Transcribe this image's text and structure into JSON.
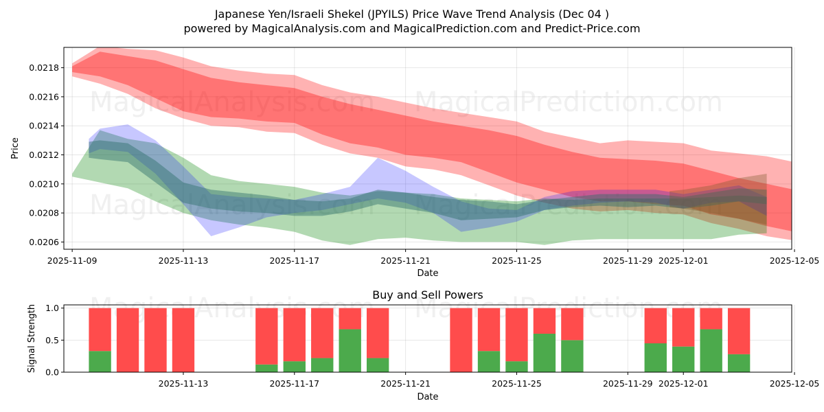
{
  "page_title": "Japanese Yen/Israeli Shekel (JPYILS) Price Wave Trend Analysis (Dec 04 )",
  "page_subtitle": "powered by MagicalAnalysis.com and MagicalPrediction.com and Predict-Price.com",
  "watermarks": [
    "MagicalAnalysis.com",
    "MagicalPrediction.com"
  ],
  "chart_data": [
    {
      "type": "area",
      "title": "Japanese Yen/Israeli Shekel (JPYILS) Price Wave Trend Analysis (Dec 04 )",
      "xlabel": "Date",
      "ylabel": "Price",
      "xlim": [
        -0.3,
        25.9
      ],
      "ylim": [
        0.02055,
        0.02194
      ],
      "x_tick_positions": [
        0,
        4,
        8,
        12,
        16,
        20,
        22,
        26
      ],
      "x_tick_labels": [
        "2025-11-09",
        "2025-11-13",
        "2025-11-17",
        "2025-11-21",
        "2025-11-25",
        "2025-11-29",
        "2025-12-01",
        "2025-12-05"
      ],
      "y_ticks": [
        0.0206,
        0.0208,
        0.021,
        0.0212,
        0.0214,
        0.0216,
        0.0218
      ],
      "y_tick_labels": [
        "0.0206",
        "0.0208",
        "0.0210",
        "0.0212",
        "0.0214",
        "0.0216",
        "0.0218"
      ],
      "grid": true,
      "colors": {
        "red": "#ff0000",
        "blue": "#0000ff",
        "green": "#008000",
        "teal": "#2f6f6a"
      },
      "bands": [
        {
          "name": "red-outer",
          "color": "#ff0000",
          "opacity": 0.3,
          "x": [
            0,
            1,
            2,
            3,
            4,
            5,
            6,
            7,
            8,
            9,
            10,
            11,
            12,
            13,
            14,
            15,
            16,
            17,
            18,
            19,
            20,
            21,
            22,
            23,
            24,
            25,
            26
          ],
          "upper": [
            0.02183,
            0.02195,
            0.02193,
            0.02192,
            0.02187,
            0.02181,
            0.02178,
            0.02176,
            0.02175,
            0.02168,
            0.02163,
            0.0216,
            0.02156,
            0.02152,
            0.02149,
            0.02146,
            0.02143,
            0.02136,
            0.02132,
            0.02128,
            0.0213,
            0.02129,
            0.02128,
            0.02123,
            0.02121,
            0.02119,
            0.02115
          ],
          "lower": [
            0.02174,
            0.02169,
            0.02162,
            0.02152,
            0.02145,
            0.0214,
            0.02139,
            0.02136,
            0.02135,
            0.02127,
            0.02121,
            0.02118,
            0.02112,
            0.0211,
            0.02106,
            0.02099,
            0.02092,
            0.02087,
            0.02083,
            0.02081,
            0.02082,
            0.0208,
            0.02079,
            0.02073,
            0.02069,
            0.02064,
            0.02061
          ]
        },
        {
          "name": "red-inner",
          "color": "#ff0000",
          "opacity": 0.35,
          "x": [
            0,
            1,
            2,
            3,
            4,
            5,
            6,
            7,
            8,
            9,
            10,
            11,
            12,
            13,
            14,
            15,
            16,
            17,
            18,
            19,
            20,
            21,
            22,
            23,
            24,
            25,
            26
          ],
          "upper": [
            0.02181,
            0.02191,
            0.02188,
            0.02185,
            0.02179,
            0.02173,
            0.0217,
            0.02168,
            0.02166,
            0.0216,
            0.02155,
            0.02151,
            0.02147,
            0.02143,
            0.0214,
            0.02137,
            0.02133,
            0.02127,
            0.02122,
            0.02118,
            0.02117,
            0.02116,
            0.02114,
            0.02109,
            0.02104,
            0.021,
            0.02096
          ],
          "lower": [
            0.02177,
            0.02174,
            0.02168,
            0.02159,
            0.0215,
            0.02146,
            0.02145,
            0.02143,
            0.02142,
            0.02134,
            0.02128,
            0.02125,
            0.0212,
            0.02118,
            0.02115,
            0.02108,
            0.02101,
            0.02096,
            0.02091,
            0.02088,
            0.02088,
            0.02086,
            0.02085,
            0.02079,
            0.02076,
            0.02071,
            0.02067
          ]
        },
        {
          "name": "green-wide",
          "color": "#008000",
          "opacity": 0.3,
          "x": [
            0,
            1,
            2,
            3,
            4,
            5,
            6,
            7,
            8,
            9,
            10,
            11,
            12,
            13,
            14,
            15,
            16,
            17,
            18,
            19,
            20,
            21,
            22,
            23,
            24,
            25
          ],
          "upper": [
            0.02107,
            0.02137,
            0.02131,
            0.02128,
            0.02118,
            0.02106,
            0.02102,
            0.021,
            0.02098,
            0.02094,
            0.02092,
            0.02095,
            0.02094,
            0.02093,
            0.0209,
            0.02089,
            0.02088,
            0.0209,
            0.02089,
            0.0209,
            0.0209,
            0.0209,
            0.0209,
            0.02091,
            0.02092,
            0.02091
          ],
          "lower": [
            0.02105,
            0.02101,
            0.02097,
            0.02088,
            0.0208,
            0.02075,
            0.02072,
            0.0207,
            0.02067,
            0.02061,
            0.02058,
            0.02062,
            0.02063,
            0.02061,
            0.0206,
            0.0206,
            0.0206,
            0.02058,
            0.02061,
            0.02062,
            0.02062,
            0.02062,
            0.02062,
            0.02062,
            0.02065,
            0.02066
          ]
        },
        {
          "name": "blue-wave",
          "color": "#0000ff",
          "opacity": 0.22,
          "x": [
            0.6,
            1,
            2,
            3,
            4,
            5,
            6,
            7,
            8,
            9,
            10,
            11,
            12,
            13,
            14,
            15,
            16,
            17,
            18,
            19,
            20,
            21,
            22,
            23,
            24,
            25
          ],
          "upper": [
            0.02131,
            0.02138,
            0.02141,
            0.0213,
            0.02112,
            0.02093,
            0.02091,
            0.0209,
            0.02089,
            0.02093,
            0.02098,
            0.02118,
            0.02109,
            0.02098,
            0.02088,
            0.02083,
            0.02082,
            0.02091,
            0.02095,
            0.02096,
            0.02096,
            0.02096,
            0.02093,
            0.02096,
            0.02099,
            0.02091
          ],
          "lower": [
            0.02121,
            0.02124,
            0.02122,
            0.02107,
            0.02086,
            0.02064,
            0.0207,
            0.02077,
            0.0208,
            0.02082,
            0.02086,
            0.0209,
            0.02087,
            0.0208,
            0.02067,
            0.0207,
            0.02074,
            0.02082,
            0.02085,
            0.02087,
            0.02088,
            0.02087,
            0.02083,
            0.02087,
            0.02088,
            0.02078
          ]
        },
        {
          "name": "teal-core",
          "color": "#2f6f6a",
          "opacity": 0.45,
          "x": [
            0.6,
            1,
            2,
            3,
            4,
            5,
            6,
            7,
            8,
            9,
            10,
            11,
            12,
            13,
            14,
            15,
            16,
            17,
            18,
            19,
            20,
            21,
            22,
            23,
            24,
            25
          ],
          "upper": [
            0.02129,
            0.0213,
            0.02128,
            0.02116,
            0.02101,
            0.02096,
            0.02094,
            0.02092,
            0.02089,
            0.02088,
            0.0209,
            0.02096,
            0.02094,
            0.02091,
            0.02089,
            0.02088,
            0.02086,
            0.02089,
            0.02091,
            0.02093,
            0.02093,
            0.02093,
            0.02091,
            0.02094,
            0.02097,
            0.02096
          ],
          "lower": [
            0.02118,
            0.02117,
            0.02115,
            0.02101,
            0.02087,
            0.02083,
            0.02081,
            0.0208,
            0.02078,
            0.02078,
            0.02081,
            0.02086,
            0.02083,
            0.0208,
            0.02075,
            0.02076,
            0.02077,
            0.02082,
            0.02084,
            0.02085,
            0.02084,
            0.02085,
            0.02083,
            0.02085,
            0.02088,
            0.02086
          ]
        },
        {
          "name": "brown-end",
          "color": "#7a5a2a",
          "opacity": 0.35,
          "x": [
            21.5,
            22,
            23,
            24,
            25
          ],
          "upper": [
            0.02095,
            0.02096,
            0.02099,
            0.02104,
            0.02107
          ],
          "lower": [
            0.02084,
            0.02083,
            0.0208,
            0.02076,
            0.02072
          ]
        }
      ]
    },
    {
      "type": "bar",
      "title": "Buy and Sell Powers",
      "xlabel": "Date",
      "ylabel": "Signal Strength",
      "xlim": [
        -0.3,
        25.9
      ],
      "ylim": [
        0,
        1.05
      ],
      "x_tick_positions": [
        4,
        8,
        12,
        16,
        20,
        22,
        26
      ],
      "x_tick_labels": [
        "2025-11-13",
        "2025-11-17",
        "2025-11-21",
        "2025-11-25",
        "2025-11-29",
        "2025-12-01",
        "2025-12-05"
      ],
      "y_ticks": [
        0,
        0.5,
        1
      ],
      "y_tick_labels": [
        "0.0",
        "0.5",
        "1.0"
      ],
      "grid": true,
      "colors": {
        "buy": "#4caa4c",
        "sell": "#ff4c4c"
      },
      "x": [
        1,
        2,
        3,
        4,
        7,
        8,
        9,
        10,
        11,
        14,
        15,
        16,
        17,
        18,
        21,
        22,
        23,
        24
      ],
      "buy": [
        0.33,
        0.0,
        0.0,
        0.0,
        0.12,
        0.17,
        0.22,
        0.67,
        0.22,
        0.0,
        0.33,
        0.17,
        0.6,
        0.5,
        0.45,
        0.4,
        0.67,
        0.28
      ],
      "sell": [
        0.67,
        1.0,
        1.0,
        1.0,
        0.88,
        0.83,
        0.78,
        0.33,
        0.78,
        1.0,
        0.67,
        0.83,
        0.4,
        0.5,
        0.55,
        0.6,
        0.33,
        0.72
      ]
    }
  ]
}
